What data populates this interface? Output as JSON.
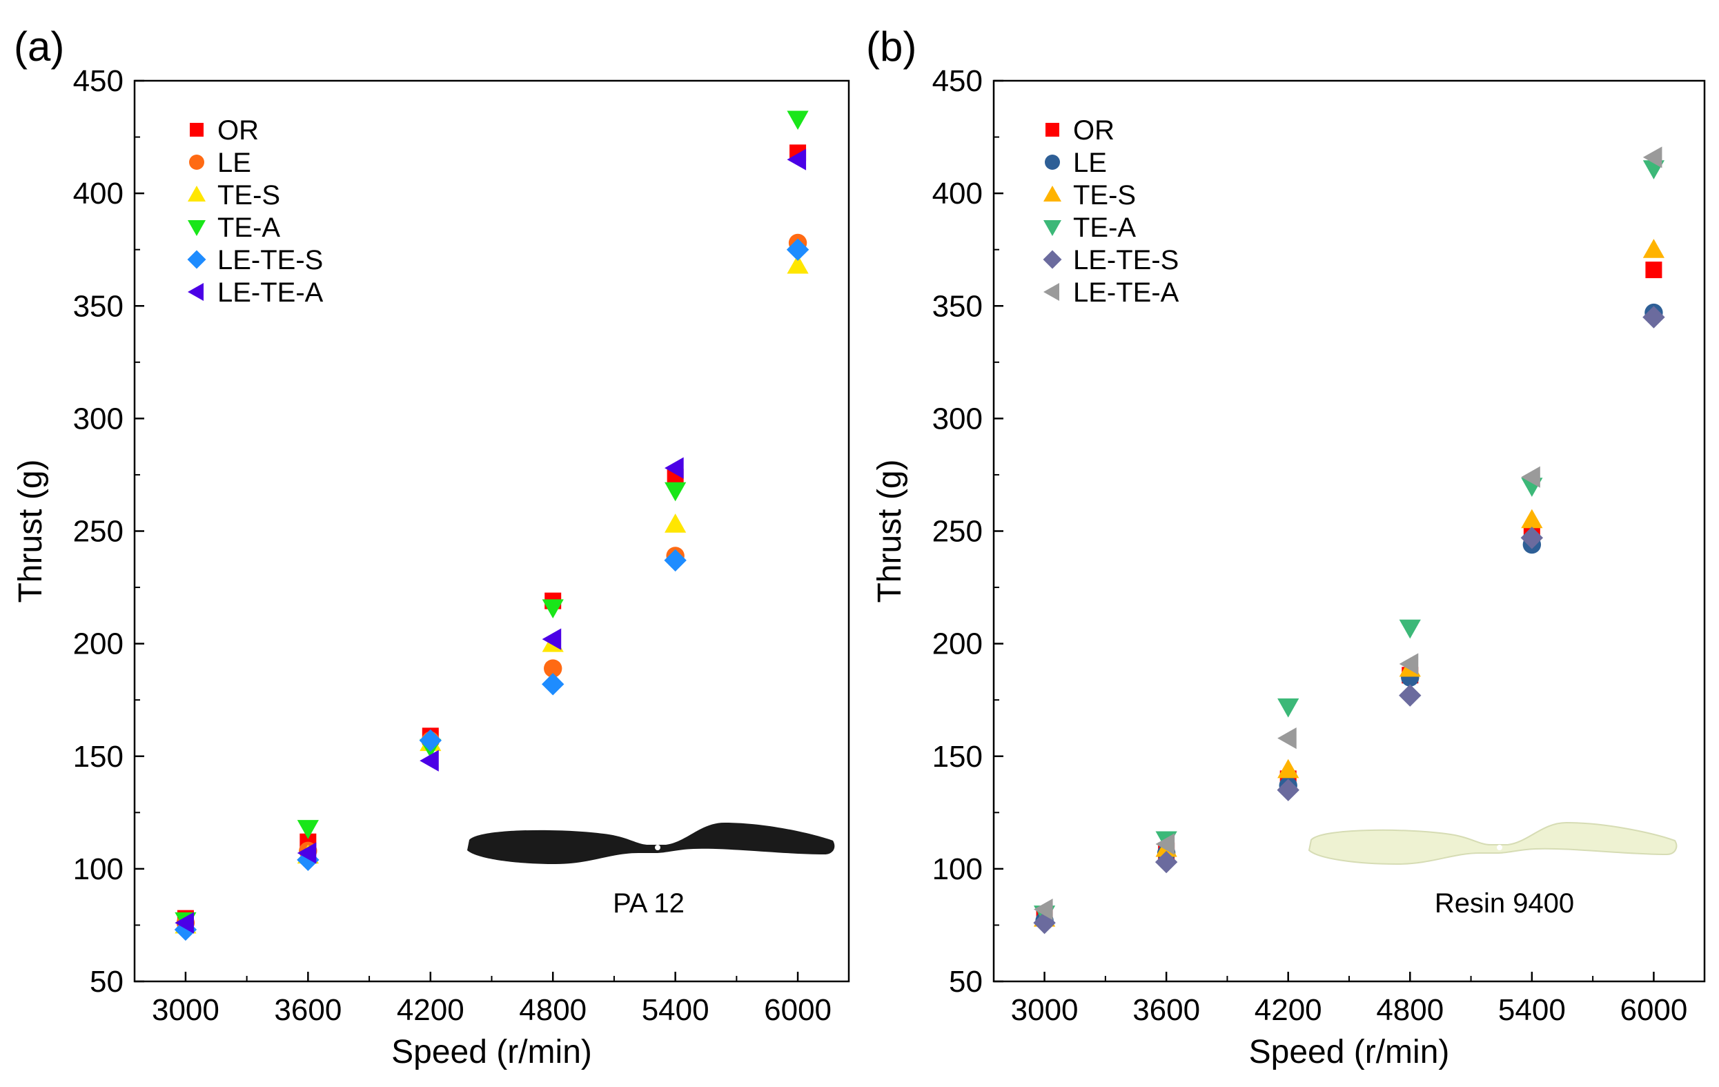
{
  "chart_data": [
    {
      "panel_label": "(a)",
      "type": "scatter",
      "xlabel": "Speed (r/min)",
      "ylabel": "Thrust (g)",
      "categories": [
        3000,
        3600,
        4200,
        4800,
        5400,
        6000
      ],
      "xlim": [
        2750,
        6250
      ],
      "ylim": [
        50,
        450
      ],
      "yticks": [
        50,
        100,
        150,
        200,
        250,
        300,
        350,
        400,
        450
      ],
      "legend_position": "top-left",
      "grid": false,
      "inset_label": "PA 12",
      "propeller_color": "#1a1a1a",
      "series": [
        {
          "name": "OR",
          "marker": "square",
          "color": "#ff0000",
          "values": [
            78,
            112,
            159,
            219,
            274,
            418
          ]
        },
        {
          "name": "LE",
          "marker": "circle",
          "color": "#ff6a13",
          "values": [
            76,
            108,
            157,
            189,
            239,
            378
          ]
        },
        {
          "name": "TE-S",
          "marker": "triangle-up",
          "color": "#ffe600",
          "values": [
            75,
            106,
            156,
            200,
            253,
            368
          ]
        },
        {
          "name": "TE-A",
          "marker": "triangle-down",
          "color": "#19e619",
          "values": [
            77,
            118,
            154,
            216,
            268,
            433
          ]
        },
        {
          "name": "LE-TE-S",
          "marker": "diamond",
          "color": "#1e8cff",
          "values": [
            73,
            104,
            157,
            182,
            237,
            375
          ]
        },
        {
          "name": "LE-TE-A",
          "marker": "triangle-left",
          "color": "#4b00e6",
          "values": [
            76,
            107,
            148,
            202,
            278,
            415
          ]
        }
      ]
    },
    {
      "panel_label": "(b)",
      "type": "scatter",
      "xlabel": "Speed (r/min)",
      "ylabel": "Thrust (g)",
      "categories": [
        3000,
        3600,
        4200,
        4800,
        5400,
        6000
      ],
      "xlim": [
        2750,
        6250
      ],
      "ylim": [
        50,
        450
      ],
      "yticks": [
        50,
        100,
        150,
        200,
        250,
        300,
        350,
        400,
        450
      ],
      "legend_position": "top-left",
      "grid": false,
      "inset_label": "Resin 9400",
      "propeller_color": "#eef2d2",
      "series": [
        {
          "name": "OR",
          "marker": "square",
          "color": "#ff0000",
          "values": [
            79,
            108,
            140,
            186,
            249,
            366
          ]
        },
        {
          "name": "LE",
          "marker": "circle",
          "color": "#2e5f96",
          "values": [
            77,
            107,
            137,
            185,
            244,
            347
          ]
        },
        {
          "name": "TE-S",
          "marker": "triangle-up",
          "color": "#ffb300",
          "values": [
            78,
            109,
            144,
            189,
            255,
            375
          ]
        },
        {
          "name": "TE-A",
          "marker": "triangle-down",
          "color": "#3cb878",
          "values": [
            80,
            113,
            172,
            207,
            270,
            411
          ]
        },
        {
          "name": "LE-TE-S",
          "marker": "diamond",
          "color": "#6b6b9e",
          "values": [
            76,
            103,
            135,
            177,
            247,
            345
          ]
        },
        {
          "name": "LE-TE-A",
          "marker": "triangle-left",
          "color": "#9a9a9a",
          "values": [
            82,
            111,
            158,
            191,
            274,
            416
          ]
        }
      ]
    }
  ]
}
